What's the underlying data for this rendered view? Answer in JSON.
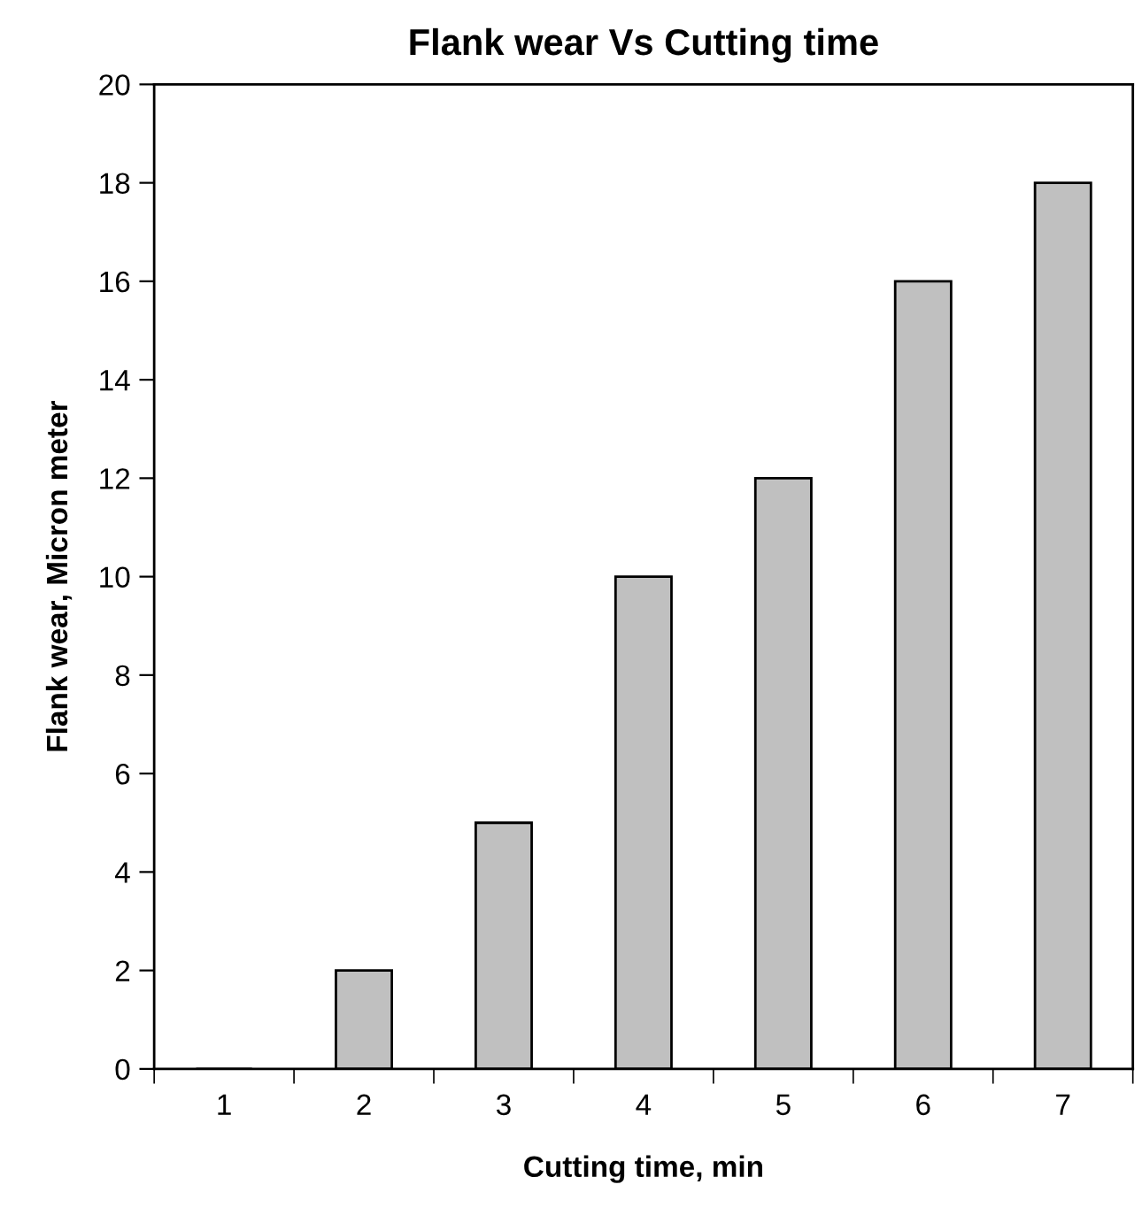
{
  "chart_data": {
    "type": "bar",
    "title": "Flank wear Vs Cutting time",
    "xlabel": "Cutting time, min",
    "ylabel": "Flank wear, Micron meter",
    "categories": [
      "1",
      "2",
      "3",
      "4",
      "5",
      "6",
      "7"
    ],
    "values": [
      0,
      2,
      5,
      10,
      12,
      16,
      18
    ],
    "color": "#c0c0c0",
    "ylim": [
      0,
      20
    ],
    "yticks": [
      0,
      2,
      4,
      6,
      8,
      10,
      12,
      14,
      16,
      18,
      20
    ],
    "grid": false,
    "legend": false
  }
}
